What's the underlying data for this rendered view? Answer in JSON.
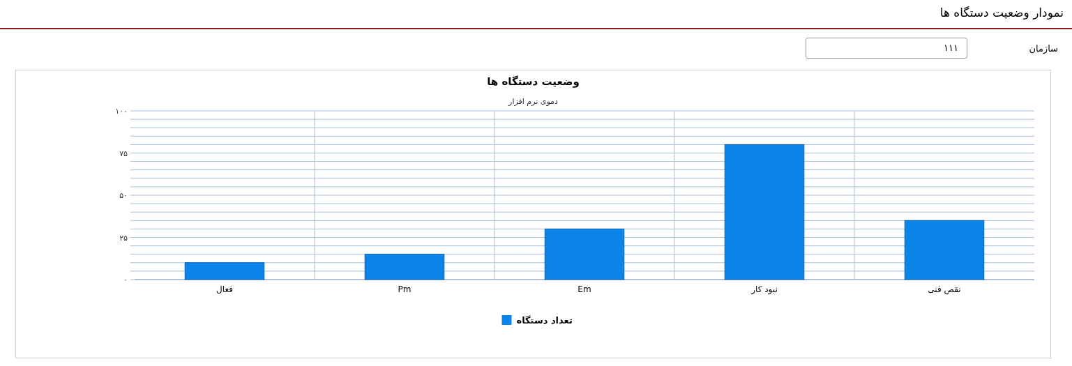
{
  "chart_data": {
    "type": "bar",
    "title": "وضعیت دستگاه ها",
    "subtitle": "دموی نرم افزار",
    "categories": [
      "فعال",
      "Pm",
      "Em",
      "نبود کار",
      "نقص فنی"
    ],
    "series": [
      {
        "name": "تعداد دستگاه",
        "color": "#0a84e8",
        "values": [
          10,
          15,
          30,
          80,
          35
        ]
      }
    ],
    "ylim": [
      0,
      100
    ],
    "yticks": [
      {
        "value": 0,
        "label": "۰"
      },
      {
        "value": 5,
        "label": null
      },
      {
        "value": 10,
        "label": null
      },
      {
        "value": 15,
        "label": null
      },
      {
        "value": 20,
        "label": null
      },
      {
        "value": 25,
        "label": "۲۵"
      },
      {
        "value": 30,
        "label": null
      },
      {
        "value": 35,
        "label": null
      },
      {
        "value": 40,
        "label": null
      },
      {
        "value": 45,
        "label": null
      },
      {
        "value": 50,
        "label": "۵۰"
      },
      {
        "value": 55,
        "label": null
      },
      {
        "value": 60,
        "label": null
      },
      {
        "value": 65,
        "label": null
      },
      {
        "value": 70,
        "label": null
      },
      {
        "value": 75,
        "label": "۷۵"
      },
      {
        "value": 80,
        "label": null
      },
      {
        "value": 85,
        "label": null
      },
      {
        "value": 90,
        "label": null
      },
      {
        "value": 95,
        "label": null
      },
      {
        "value": 100,
        "label": "۱۰۰"
      }
    ],
    "grid": true,
    "legend": "bottom",
    "annotations": [
      "نمودار وضعیت دستگاه ها",
      "سازمان",
      "۱۱۱"
    ]
  }
}
